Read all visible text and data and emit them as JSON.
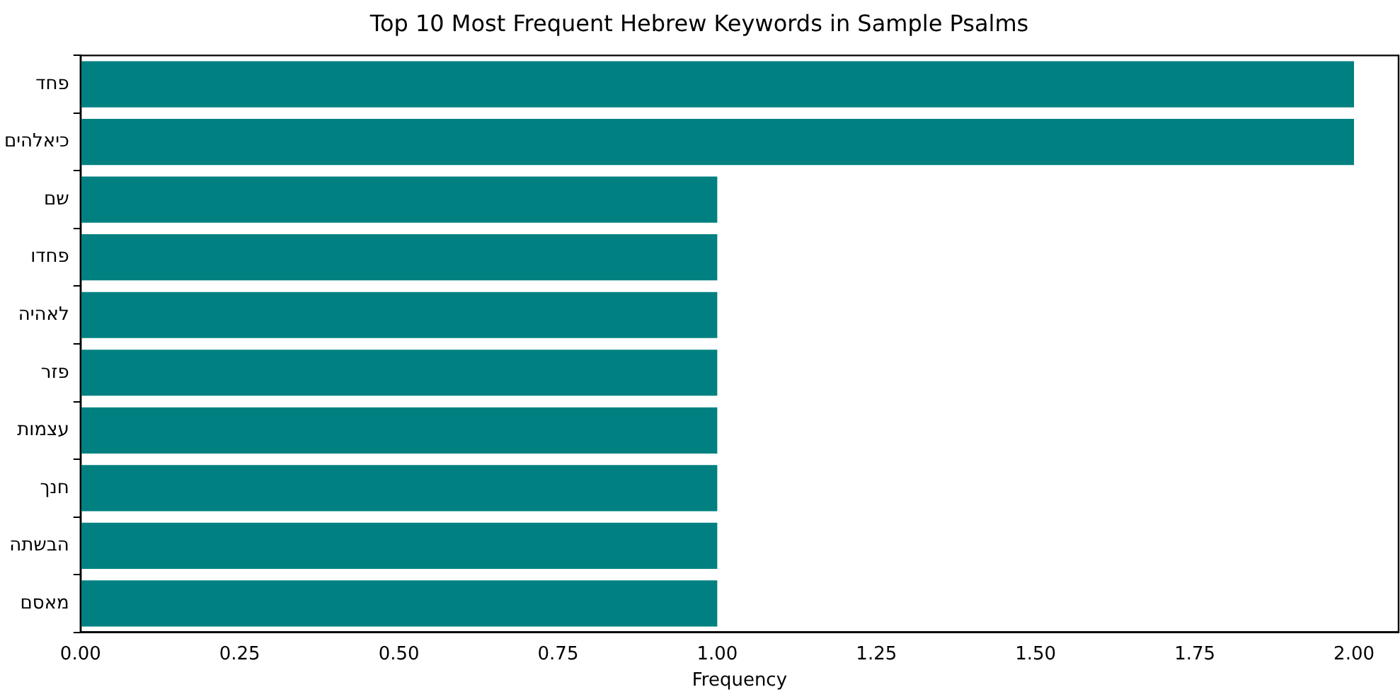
{
  "chart_data": {
    "type": "bar",
    "orientation": "horizontal",
    "title": "Top 10 Most Frequent Hebrew Keywords in Sample Psalms",
    "xlabel": "Frequency",
    "categories": [
      "פחד",
      "כיאלהים",
      "שם",
      "פחדו",
      "לאהיה",
      "פזר",
      "עצמות",
      "חנך",
      "הבשתה",
      "מאסם"
    ],
    "values": [
      2,
      2,
      1,
      1,
      1,
      1,
      1,
      1,
      1,
      1
    ],
    "color": "#008080",
    "xlim": [
      0,
      2.07
    ],
    "xticks": [
      {
        "value": 0,
        "label": "0.00"
      },
      {
        "value": 0.25,
        "label": "0.25"
      },
      {
        "value": 0.5,
        "label": "0.50"
      },
      {
        "value": 0.75,
        "label": "0.75"
      },
      {
        "value": 1,
        "label": "1.00"
      },
      {
        "value": 1.25,
        "label": "1.25"
      },
      {
        "value": 1.5,
        "label": "1.50"
      },
      {
        "value": 1.75,
        "label": "1.75"
      },
      {
        "value": 2,
        "label": "2.00"
      }
    ],
    "grid": false,
    "legend": false
  }
}
